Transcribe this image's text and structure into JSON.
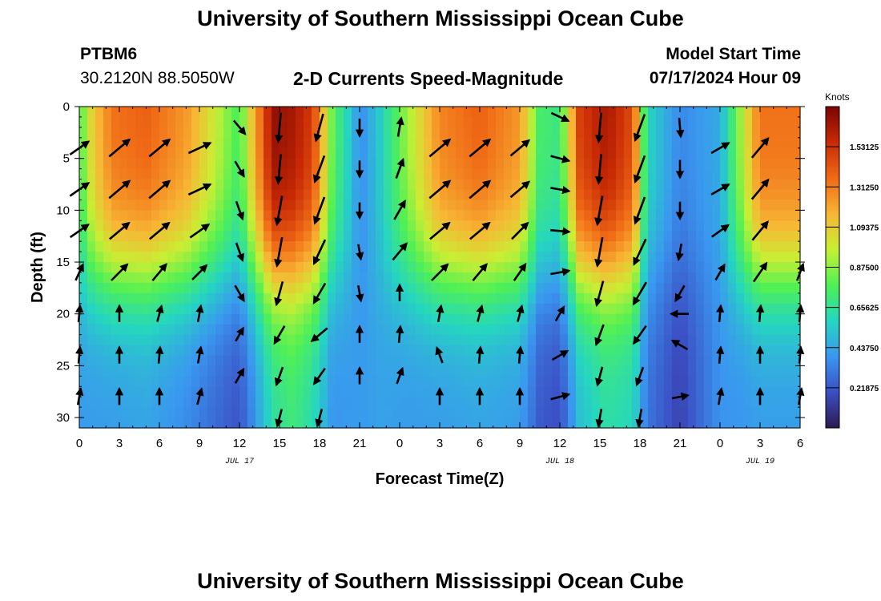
{
  "page": {
    "title": "University of Southern Mississippi Ocean Cube",
    "footer_title": "University of Southern Mississippi Ocean Cube",
    "station": "PTBM6",
    "location": "30.2120N  88.5050W",
    "plot_title": "2-D Currents Speed-Magnitude",
    "model_start_label": "Model Start Time",
    "model_start_value": "07/17/2024 Hour 09"
  },
  "chart_data": {
    "type": "heatmap",
    "title": "2-D Currents Speed-Magnitude",
    "xlabel": "Forecast Time(Z)",
    "ylabel": "Depth (ft)",
    "x_ticks": [
      "0",
      "3",
      "6",
      "9",
      "12",
      "15",
      "18",
      "21",
      "0",
      "3",
      "6",
      "9",
      "12",
      "15",
      "18",
      "21",
      "0",
      "3",
      "6"
    ],
    "x_range_hours": [
      0,
      54
    ],
    "date_labels": [
      {
        "text": "JUL 17",
        "hour": 12
      },
      {
        "text": "JUL 18",
        "hour": 36
      },
      {
        "text": "JUL 19",
        "hour": 51
      }
    ],
    "y_ticks": [
      0,
      5,
      10,
      15,
      20,
      25,
      30
    ],
    "ylim": [
      31,
      0
    ],
    "colorbar": {
      "unit": "Knots",
      "ticks": [
        "1.53125",
        "1.31250",
        "1.09375",
        "0.87500",
        "0.65625",
        "0.43750",
        "0.21875"
      ],
      "range": [
        0,
        1.75
      ],
      "colors": [
        "#2c1a4f",
        "#3b4fc4",
        "#3a97f0",
        "#25d6c0",
        "#4ff055",
        "#c8ef34",
        "#f8b534",
        "#f06a16",
        "#c82a05",
        "#7a0403"
      ]
    },
    "speed_profile": [
      {
        "hour": 0,
        "top": 0.75,
        "bottom": 0.4
      },
      {
        "hour": 1,
        "top": 1.1,
        "bottom": 0.4
      },
      {
        "hour": 2.5,
        "top": 1.35,
        "bottom": 0.4
      },
      {
        "hour": 5,
        "top": 1.4,
        "bottom": 0.42
      },
      {
        "hour": 8,
        "top": 1.25,
        "bottom": 0.35
      },
      {
        "hour": 10.5,
        "top": 0.95,
        "bottom": 0.25
      },
      {
        "hour": 12,
        "top": 0.75,
        "bottom": 0.2
      },
      {
        "hour": 13,
        "top": 1.15,
        "bottom": 0.35
      },
      {
        "hour": 14.5,
        "top": 1.7,
        "bottom": 0.62
      },
      {
        "hour": 16,
        "top": 1.65,
        "bottom": 0.7
      },
      {
        "hour": 17.5,
        "top": 1.5,
        "bottom": 0.6
      },
      {
        "hour": 19,
        "top": 0.8,
        "bottom": 0.38
      },
      {
        "hour": 20.5,
        "top": 0.5,
        "bottom": 0.4
      },
      {
        "hour": 21,
        "top": 0.35,
        "bottom": 0.4
      },
      {
        "hour": 22.5,
        "top": 0.55,
        "bottom": 0.42
      },
      {
        "hour": 24.5,
        "top": 0.9,
        "bottom": 0.4
      },
      {
        "hour": 27,
        "top": 1.3,
        "bottom": 0.4
      },
      {
        "hour": 30,
        "top": 1.4,
        "bottom": 0.42
      },
      {
        "hour": 33,
        "top": 1.25,
        "bottom": 0.4
      },
      {
        "hour": 34.5,
        "top": 0.75,
        "bottom": 0.22
      },
      {
        "hour": 36,
        "top": 0.7,
        "bottom": 0.18
      },
      {
        "hour": 37.5,
        "top": 1.5,
        "bottom": 0.5
      },
      {
        "hour": 39.5,
        "top": 1.65,
        "bottom": 0.62
      },
      {
        "hour": 41.5,
        "top": 1.45,
        "bottom": 0.58
      },
      {
        "hour": 42.5,
        "top": 0.6,
        "bottom": 0.3
      },
      {
        "hour": 45,
        "top": 0.35,
        "bottom": 0.15
      },
      {
        "hour": 48,
        "top": 0.45,
        "bottom": 0.38
      },
      {
        "hour": 49.5,
        "top": 0.9,
        "bottom": 0.38
      },
      {
        "hour": 51,
        "top": 1.35,
        "bottom": 0.4
      },
      {
        "hour": 54,
        "top": 1.35,
        "bottom": 0.4
      }
    ],
    "vectors": [
      {
        "hour": 0,
        "depths": [
          4,
          8,
          12,
          16,
          20,
          24,
          28
        ],
        "dir": [
          55,
          55,
          55,
          25,
          5,
          5,
          10
        ],
        "speed": [
          0.9,
          0.9,
          0.85,
          0.5,
          0.4,
          0.4,
          0.4
        ]
      },
      {
        "hour": 3,
        "depths": [
          4,
          8,
          12,
          16,
          20,
          24,
          28
        ],
        "dir": [
          50,
          50,
          50,
          45,
          0,
          0,
          0
        ],
        "speed": [
          1.2,
          1.2,
          1.1,
          0.9,
          0.4,
          0.4,
          0.4
        ]
      },
      {
        "hour": 6,
        "depths": [
          4,
          8,
          12,
          16,
          20,
          24,
          28
        ],
        "dir": [
          50,
          50,
          50,
          40,
          15,
          5,
          0
        ],
        "speed": [
          1.2,
          1.2,
          1.1,
          0.8,
          0.4,
          0.4,
          0.4
        ]
      },
      {
        "hour": 9,
        "depths": [
          4,
          8,
          12,
          16,
          20,
          24,
          28
        ],
        "dir": [
          65,
          65,
          55,
          45,
          10,
          10,
          15
        ],
        "speed": [
          1.0,
          1.0,
          0.9,
          0.7,
          0.4,
          0.4,
          0.4
        ]
      },
      {
        "hour": 12,
        "depths": [
          2,
          6,
          10,
          14,
          18,
          22,
          26
        ],
        "dir": [
          140,
          150,
          160,
          160,
          150,
          30,
          30
        ],
        "speed": [
          0.5,
          0.5,
          0.6,
          0.6,
          0.5,
          0.3,
          0.4
        ]
      },
      {
        "hour": 15,
        "depths": [
          2,
          6,
          10,
          14,
          18,
          22,
          26,
          30
        ],
        "dir": [
          185,
          185,
          190,
          190,
          195,
          210,
          200,
          195
        ],
        "speed": [
          1.4,
          1.4,
          1.4,
          1.4,
          1.0,
          0.7,
          0.6,
          0.5
        ]
      },
      {
        "hour": 18,
        "depths": [
          2,
          6,
          10,
          14,
          18,
          22,
          26,
          30
        ],
        "dir": [
          195,
          200,
          200,
          205,
          210,
          230,
          215,
          195
        ],
        "speed": [
          1.3,
          1.3,
          1.3,
          1.2,
          0.9,
          0.7,
          0.6,
          0.5
        ]
      },
      {
        "hour": 21,
        "depths": [
          2,
          6,
          10,
          14,
          18,
          22,
          26
        ],
        "dir": [
          180,
          180,
          180,
          170,
          170,
          0,
          0
        ],
        "speed": [
          0.5,
          0.4,
          0.35,
          0.3,
          0.35,
          0.4,
          0.4
        ]
      },
      {
        "hour": 24,
        "depths": [
          2,
          6,
          10,
          14,
          18,
          22,
          26
        ],
        "dir": [
          10,
          20,
          30,
          40,
          0,
          5,
          20
        ],
        "speed": [
          0.6,
          0.7,
          0.8,
          0.8,
          0.4,
          0.4,
          0.4
        ]
      },
      {
        "hour": 27,
        "depths": [
          4,
          8,
          12,
          16,
          20,
          24,
          28
        ],
        "dir": [
          50,
          50,
          50,
          45,
          10,
          340,
          0
        ],
        "speed": [
          1.2,
          1.2,
          1.1,
          0.9,
          0.4,
          0.4,
          0.4
        ]
      },
      {
        "hour": 30,
        "depths": [
          4,
          8,
          12,
          16,
          20,
          24,
          28
        ],
        "dir": [
          50,
          50,
          50,
          40,
          15,
          5,
          0
        ],
        "speed": [
          1.2,
          1.2,
          1.1,
          0.8,
          0.4,
          0.4,
          0.4
        ]
      },
      {
        "hour": 33,
        "depths": [
          4,
          8,
          12,
          16,
          20,
          24,
          28
        ],
        "dir": [
          50,
          50,
          45,
          35,
          15,
          5,
          0
        ],
        "speed": [
          1.0,
          1.0,
          0.9,
          0.7,
          0.4,
          0.4,
          0.4
        ]
      },
      {
        "hour": 36,
        "depths": [
          1,
          5,
          8,
          12,
          16,
          20,
          24,
          28
        ],
        "dir": [
          115,
          105,
          100,
          95,
          80,
          30,
          60,
          75
        ],
        "speed": [
          0.6,
          0.6,
          0.6,
          0.6,
          0.6,
          0.4,
          0.5,
          0.6
        ]
      },
      {
        "hour": 39,
        "depths": [
          2,
          6,
          10,
          14,
          18,
          22,
          26,
          30
        ],
        "dir": [
          185,
          185,
          190,
          190,
          195,
          200,
          195,
          190
        ],
        "speed": [
          1.4,
          1.4,
          1.4,
          1.4,
          1.1,
          0.8,
          0.6,
          0.5
        ]
      },
      {
        "hour": 42,
        "depths": [
          2,
          6,
          10,
          14,
          18,
          22,
          26,
          30
        ],
        "dir": [
          200,
          200,
          200,
          205,
          210,
          215,
          200,
          190
        ],
        "speed": [
          1.3,
          1.3,
          1.3,
          1.3,
          1.1,
          0.8,
          0.6,
          0.5
        ]
      },
      {
        "hour": 45,
        "depths": [
          2,
          6,
          10,
          14,
          18,
          20,
          23,
          28
        ],
        "dir": [
          175,
          180,
          180,
          190,
          210,
          270,
          300,
          80
        ],
        "speed": [
          0.6,
          0.5,
          0.45,
          0.4,
          0.5,
          0.5,
          0.5,
          0.4
        ]
      },
      {
        "hour": 48,
        "depths": [
          4,
          8,
          12,
          16,
          20,
          24,
          28
        ],
        "dir": [
          60,
          60,
          55,
          30,
          5,
          5,
          10
        ],
        "speed": [
          0.7,
          0.7,
          0.7,
          0.5,
          0.4,
          0.4,
          0.4
        ]
      },
      {
        "hour": 51,
        "depths": [
          4,
          8,
          12,
          16,
          20,
          24,
          28
        ],
        "dir": [
          40,
          40,
          40,
          35,
          5,
          0,
          0
        ],
        "speed": [
          1.1,
          1.1,
          1.0,
          0.9,
          0.4,
          0.4,
          0.4
        ]
      },
      {
        "hour": 54,
        "depths": [
          16,
          20,
          24,
          28
        ],
        "dir": [
          20,
          5,
          5,
          10
        ],
        "speed": [
          0.5,
          0.4,
          0.4,
          0.4
        ]
      }
    ]
  }
}
